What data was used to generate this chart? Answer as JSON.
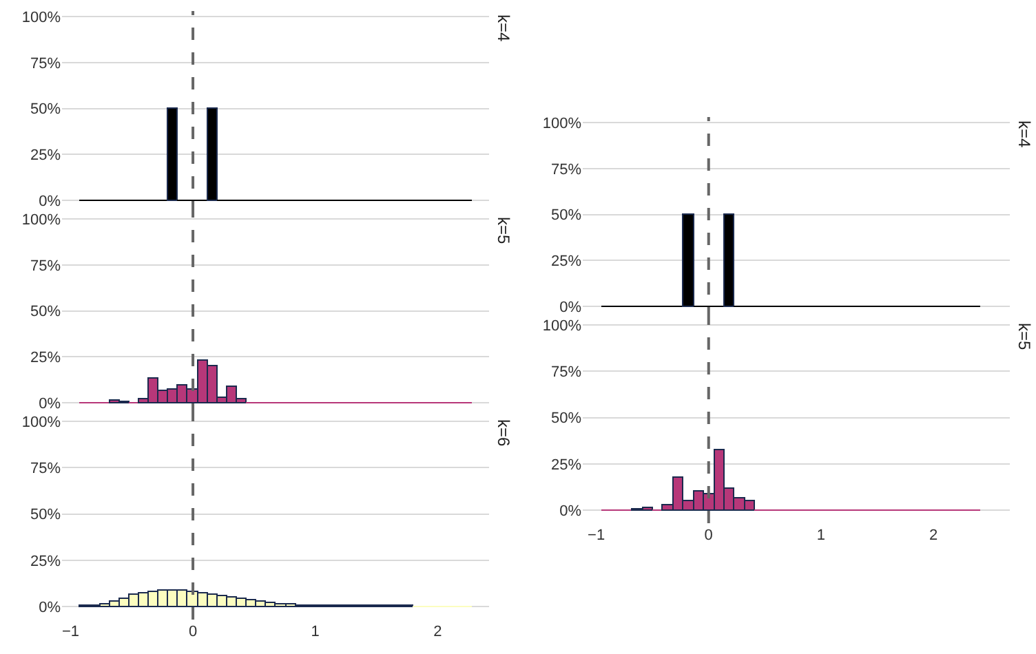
{
  "chart_data": [
    {
      "type": "histogram",
      "title": "k=4",
      "color": "#000000",
      "tick_labels": "y",
      "grid": "y",
      "bins": [
        -0.92,
        -0.84,
        -0.76,
        -0.68,
        -0.6,
        -0.52,
        -0.44,
        -0.36,
        -0.28,
        -0.2,
        -0.12,
        -0.04,
        0.04,
        0.12,
        0.2,
        0.28,
        0.36,
        0.44,
        0.52,
        0.6,
        0.68,
        0.76,
        0.84,
        0.92,
        1,
        1.08,
        1.16,
        1.24,
        1.32,
        1.4,
        1.48,
        1.56,
        1.64,
        1.72,
        1.8,
        1.88,
        1.96,
        2.04,
        2.12,
        2.2,
        2.28
      ],
      "values": [
        0,
        0,
        0,
        0,
        0,
        0,
        0,
        0,
        0,
        50,
        0,
        0,
        0,
        50,
        0,
        0,
        0,
        0,
        0,
        0,
        0,
        0,
        0,
        0,
        0,
        0,
        0,
        0,
        0,
        0,
        0,
        0,
        0,
        0,
        0,
        0,
        0,
        0,
        0,
        0
      ],
      "xlim": [
        -1.07,
        2.42
      ],
      "xticks": [
        -1,
        0,
        1,
        2
      ],
      "ylim": [
        -7,
        103
      ],
      "yticks": [
        {
          "value": 0,
          "label": "0%"
        },
        {
          "value": 25,
          "label": "25%"
        },
        {
          "value": 50,
          "label": "50%"
        },
        {
          "value": 75,
          "label": "75%"
        },
        {
          "value": 100,
          "label": "100%"
        }
      ],
      "ref_lines": [
        {
          "axis": "x",
          "value": 0,
          "line_style": "dashed",
          "color": "#666666"
        }
      ]
    },
    {
      "type": "histogram",
      "title": "k=5",
      "color": "#b73779",
      "tick_labels": "y",
      "grid": "y",
      "bins": [
        -0.92,
        -0.84,
        -0.76,
        -0.68,
        -0.6,
        -0.52,
        -0.44,
        -0.36,
        -0.28,
        -0.2,
        -0.12,
        -0.04,
        0.04,
        0.12,
        0.2,
        0.28,
        0.36,
        0.44,
        0.52,
        0.6,
        0.68,
        0.76,
        0.84,
        0.92,
        1,
        1.08,
        1.16,
        1.24,
        1.32,
        1.4,
        1.48,
        1.56,
        1.64,
        1.72,
        1.8,
        1.88,
        1.96,
        2.04,
        2.12,
        2.2,
        2.28
      ],
      "values": [
        0,
        0,
        0,
        1.5,
        0.5,
        0,
        1.7,
        13.1,
        6.7,
        7.2,
        9.7,
        7.2,
        23.3,
        19.6,
        2.7,
        8.7,
        2,
        0,
        0,
        0,
        0,
        0,
        0,
        0,
        0,
        0,
        0,
        0,
        0,
        0,
        0,
        0,
        0,
        0,
        0,
        0,
        0,
        0,
        0,
        0
      ],
      "xlim": [
        -1.07,
        2.42
      ],
      "xticks": [
        -1,
        0,
        1,
        2
      ],
      "ylim": [
        -7,
        103
      ],
      "yticks": [
        {
          "value": 0,
          "label": "0%"
        },
        {
          "value": 25,
          "label": "25%"
        },
        {
          "value": 50,
          "label": "50%"
        },
        {
          "value": 75,
          "label": "75%"
        },
        {
          "value": 100,
          "label": "100%"
        }
      ],
      "ref_lines": [
        {
          "axis": "x",
          "value": 0,
          "line_style": "dashed",
          "color": "#666666"
        }
      ]
    },
    {
      "type": "histogram",
      "title": "k=6",
      "color": "#fcfdbf",
      "grid": "y",
      "bins": [
        -0.92,
        -0.84,
        -0.76,
        -0.68,
        -0.6,
        -0.52,
        -0.44,
        -0.36,
        -0.28,
        -0.2,
        -0.12,
        -0.04,
        0.04,
        0.12,
        0.2,
        0.28,
        0.36,
        0.44,
        0.52,
        0.6,
        0.68,
        0.76,
        0.84,
        0.92,
        1,
        1.08,
        1.16,
        1.24,
        1.32,
        1.4,
        1.48,
        1.56,
        1.64,
        1.72,
        1.8,
        1.88,
        1.96,
        2.04,
        2.12,
        2.2,
        2.28
      ],
      "values": [
        0.1,
        0.4,
        1.2,
        2.8,
        4.3,
        6.1,
        7.3,
        8.1,
        8.6,
        8.6,
        8.3,
        7.8,
        7.1,
        6.6,
        5.8,
        4.8,
        4,
        3.3,
        2.5,
        2,
        1.5,
        1.3,
        0.8,
        0.6,
        0.5,
        0.3,
        0.3,
        0.2,
        0.2,
        0.1,
        0.1,
        0.1,
        0.1,
        0.1,
        0,
        0,
        0,
        0,
        0,
        0
      ],
      "xlim": [
        -1.07,
        2.42
      ],
      "xticks": [
        {
          "value": -1,
          "label": "−1"
        },
        0,
        1,
        2
      ],
      "ylim": [
        -7,
        103
      ],
      "yticks": [
        {
          "value": 0,
          "label": "0%"
        },
        {
          "value": 25,
          "label": "25%"
        },
        {
          "value": 50,
          "label": "50%"
        },
        {
          "value": 75,
          "label": "75%"
        },
        {
          "value": 100,
          "label": "100%"
        }
      ],
      "ref_lines": [
        {
          "axis": "x",
          "value": 0,
          "line_style": "dashed",
          "color": "#666666"
        }
      ]
    },
    {
      "type": "histogram",
      "title": "k=4",
      "color": "#000000",
      "tick_labels": "y",
      "grid": "y",
      "bins": [
        -0.95,
        -0.859,
        -0.768,
        -0.677,
        -0.586,
        -0.495,
        -0.404,
        -0.313,
        -0.222,
        -0.131,
        -0.04,
        0.051,
        0.142,
        0.233,
        0.324,
        0.415,
        0.506,
        0.597,
        0.688,
        0.779,
        0.87,
        0.961,
        1.052,
        1.143,
        1.234,
        1.325,
        1.416,
        1.507,
        1.598,
        1.689,
        1.78,
        1.871,
        1.962,
        2.053,
        2.144,
        2.235,
        2.326,
        2.417
      ],
      "values": [
        0,
        0,
        0,
        0,
        0,
        0,
        0,
        0,
        50,
        0,
        0,
        0,
        50,
        0,
        0,
        0,
        0,
        0,
        0,
        0,
        0,
        0,
        0,
        0,
        0,
        0,
        0,
        0,
        0,
        0,
        0,
        0,
        0,
        0,
        0,
        0,
        0
      ],
      "xlim": [
        -1.12,
        2.68
      ],
      "xticks": [
        -1,
        0,
        1,
        2
      ],
      "ylim": [
        -7,
        103
      ],
      "yticks": [
        {
          "value": 0,
          "label": "0%"
        },
        {
          "value": 25,
          "label": "25%"
        },
        {
          "value": 50,
          "label": "50%"
        },
        {
          "value": 75,
          "label": "75%"
        },
        {
          "value": 100,
          "label": "100%"
        }
      ],
      "ref_lines": [
        {
          "axis": "x",
          "value": 0,
          "line_style": "dashed",
          "color": "#666666"
        }
      ]
    },
    {
      "type": "histogram",
      "title": "k=5",
      "color": "#b73779",
      "grid": "y",
      "bins": [
        -0.95,
        -0.859,
        -0.768,
        -0.677,
        -0.586,
        -0.495,
        -0.404,
        -0.313,
        -0.222,
        -0.131,
        -0.04,
        0.051,
        0.142,
        0.233,
        0.324,
        0.415,
        0.506,
        0.597,
        0.688,
        0.779,
        0.87,
        0.961,
        1.052,
        1.143,
        1.234,
        1.325,
        1.416,
        1.507,
        1.598,
        1.689,
        1.78,
        1.871,
        1.962,
        2.053,
        2.144,
        2.235,
        2.326,
        2.417
      ],
      "values": [
        0,
        0,
        0,
        0.4,
        1.2,
        0,
        2.5,
        17.6,
        5.2,
        10.1,
        8.4,
        32.4,
        11.4,
        6.2,
        4.7,
        0,
        0,
        0,
        0,
        0,
        0,
        0,
        0,
        0,
        0,
        0,
        0,
        0,
        0,
        0,
        0,
        0,
        0,
        0,
        0,
        0,
        0
      ],
      "xlim": [
        -1.12,
        2.68
      ],
      "xticks": [
        {
          "value": -1,
          "label": "−1"
        },
        0,
        1,
        2
      ],
      "ylim": [
        -7,
        103
      ],
      "yticks": [
        {
          "value": 0,
          "label": "0%"
        },
        {
          "value": 25,
          "label": "25%"
        },
        {
          "value": 50,
          "label": "50%"
        },
        {
          "value": 75,
          "label": "75%"
        },
        {
          "value": 100,
          "label": "100%"
        }
      ],
      "ref_lines": [
        {
          "axis": "x",
          "value": 0,
          "line_style": "dashed",
          "color": "#666666"
        }
      ]
    }
  ]
}
